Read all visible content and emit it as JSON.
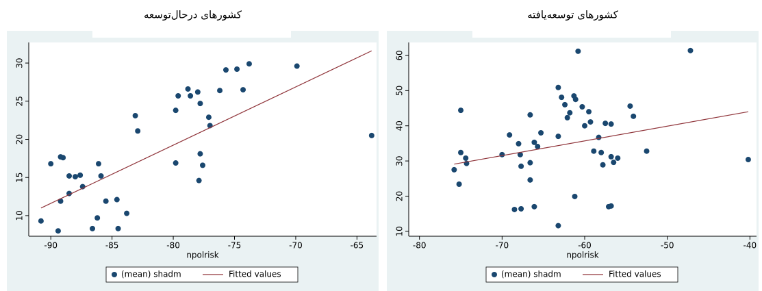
{
  "chart_data": [
    {
      "type": "scatter",
      "title": "کشورهای درحال‌توسعه",
      "xlabel": "npolrisk",
      "xlim": [
        -91.8,
        -63.4
      ],
      "ylim": [
        7.3,
        32.7
      ],
      "xticks": [
        -90,
        -85,
        -80,
        -75,
        -70,
        -65
      ],
      "yticks": [
        10,
        15,
        20,
        25,
        30
      ],
      "series": [
        {
          "name": "(mean) shadm",
          "type": "scatter",
          "color": "#1a476f",
          "x": [
            -90.8,
            -90,
            -89.2,
            -89.2,
            -89.0,
            -89.4,
            -88.5,
            -88.5,
            -88.0,
            -87.6,
            -87.4,
            -86.6,
            -86.2,
            -86.1,
            -85.9,
            -85.5,
            -84.6,
            -84.5,
            -83.8,
            -83.1,
            -82.9,
            -79.8,
            -79.8,
            -79.6,
            -78.8,
            -78.6,
            -78.0,
            -77.8,
            -77.8,
            -77.9,
            -77.6,
            -77.1,
            -77.0,
            -76.2,
            -75.7,
            -74.8,
            -74.3,
            -73.8,
            -69.9,
            -63.8
          ],
          "values": [
            9.3,
            16.8,
            11.9,
            17.7,
            17.6,
            8.0,
            12.9,
            15.2,
            15.1,
            15.3,
            13.8,
            8.3,
            9.7,
            16.8,
            15.2,
            11.9,
            12.1,
            8.3,
            10.3,
            23.1,
            21.1,
            16.9,
            23.8,
            25.7,
            26.6,
            25.7,
            26.2,
            24.7,
            18.1,
            14.6,
            16.6,
            22.9,
            21.8,
            26.4,
            29.1,
            29.2,
            26.5,
            29.9,
            29.6,
            20.5
          ]
        },
        {
          "name": "Fitted values",
          "type": "line",
          "color": "#90353b",
          "x": [
            -90.8,
            -63.8
          ],
          "values": [
            11.0,
            31.6
          ]
        }
      ]
    },
    {
      "type": "scatter",
      "title": "کشورهای توسعه‌یافته",
      "xlabel": "npolrisk",
      "xlim": [
        -81.3,
        -39.2
      ],
      "ylim": [
        8.6,
        63.7
      ],
      "xticks": [
        -80,
        -70,
        -60,
        -50,
        -40
      ],
      "yticks": [
        10,
        20,
        30,
        40,
        50,
        60
      ],
      "series": [
        {
          "name": "(mean) shadm",
          "type": "scatter",
          "color": "#1a476f",
          "x": [
            -75.8,
            -74.4,
            -75,
            -75.0,
            -75.2,
            -74.3,
            -70,
            -69.1,
            -68.5,
            -67.7,
            -68,
            -67.8,
            -67.7,
            -66.6,
            -66.6,
            -66.6,
            -66.1,
            -66.1,
            -65.7,
            -65.3,
            -63.2,
            -63.2,
            -63.2,
            -62.8,
            -62.4,
            -62.1,
            -61.8,
            -61.3,
            -61.1,
            -61.2,
            -60.8,
            -60.3,
            -60.0,
            -59.5,
            -59.3,
            -58.9,
            -58.3,
            -58.0,
            -57.8,
            -57.5,
            -57.1,
            -56.8,
            -56.8,
            -56.8,
            -56.5,
            -56.0,
            -54.5,
            -54.1,
            -52.5,
            -47.2,
            -40.2
          ],
          "values": [
            27.5,
            30.8,
            44.4,
            32.4,
            23.4,
            29.3,
            31.8,
            37.4,
            16.2,
            16.4,
            34.9,
            31.8,
            28.5,
            43.1,
            29.5,
            24.6,
            17.0,
            35.3,
            34.1,
            38.0,
            50.9,
            37.0,
            11.6,
            48.1,
            46.0,
            42.3,
            43.7,
            48.5,
            47.5,
            19.9,
            61.2,
            45.4,
            40.0,
            44.0,
            41.1,
            32.8,
            36.7,
            32.4,
            28.9,
            40.7,
            17.0,
            40.5,
            31.2,
            17.2,
            29.6,
            30.8,
            45.6,
            42.7,
            32.8,
            61.4,
            30.4
          ]
        },
        {
          "name": "Fitted values",
          "type": "line",
          "color": "#90353b",
          "x": [
            -75.8,
            -40.2
          ],
          "values": [
            29.1,
            44.0
          ]
        }
      ]
    }
  ]
}
